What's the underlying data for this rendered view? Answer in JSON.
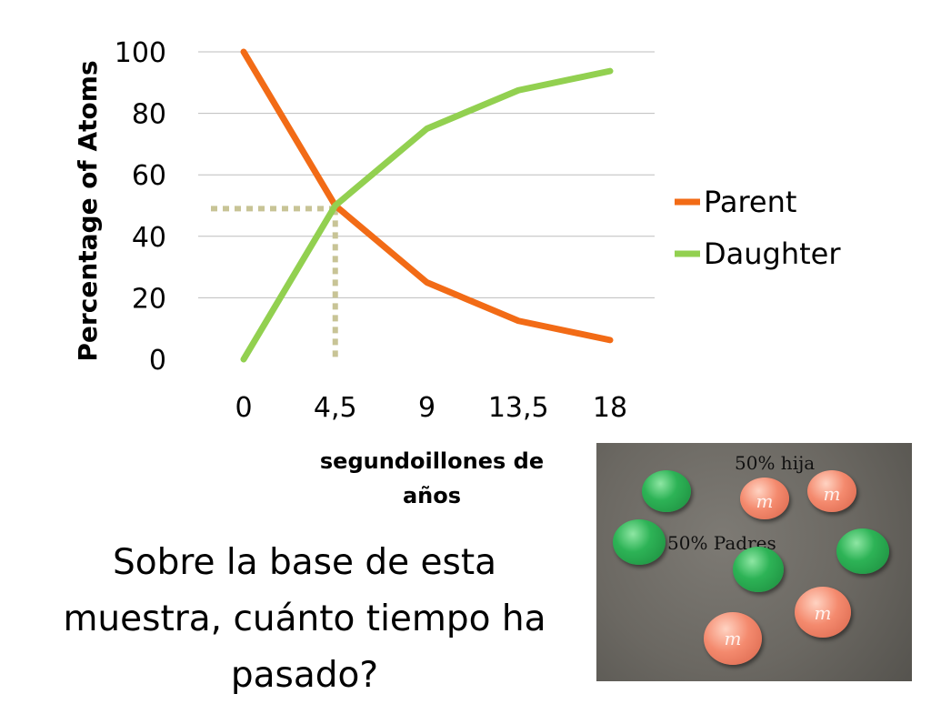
{
  "chart_data": {
    "type": "line",
    "x": [
      0,
      4.5,
      9,
      13.5,
      18
    ],
    "tick_labels_x": [
      "0",
      "4,5",
      "9",
      "13,5",
      "18"
    ],
    "series": [
      {
        "name": "Parent",
        "values": [
          100,
          50,
          25,
          12.5,
          6.25
        ],
        "color": "#f26b16"
      },
      {
        "name": "Daughter",
        "values": [
          0,
          50,
          75,
          87.5,
          93.75
        ],
        "color": "#92d050"
      }
    ],
    "ylabel": "Percentage of Atoms",
    "xlabel": "segundoillones de años",
    "ylim": [
      0,
      100
    ],
    "yticks": [
      0,
      20,
      40,
      60,
      80,
      100
    ],
    "grid": true,
    "legend_position": "right",
    "reference_point": {
      "x": 4.5,
      "y": 49,
      "color": "#c8c496"
    }
  },
  "xlabel_lines": [
    "segundoillones de",
    "años"
  ],
  "question_lines": [
    "Sobre la base de esta",
    "muestra, cuánto tiempo ha",
    "pasado?"
  ],
  "photo": {
    "label_daughter": "50% hija",
    "label_parent": "50% Padres",
    "candy_mark": "m"
  }
}
